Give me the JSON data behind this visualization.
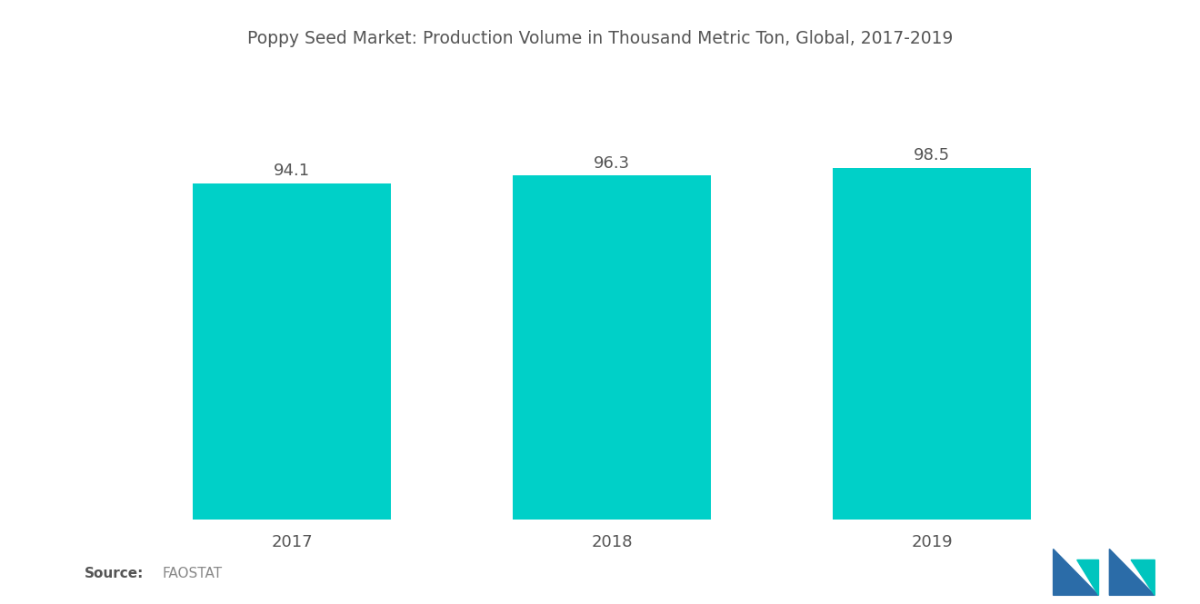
{
  "title": "Poppy Seed Market: Production Volume in Thousand Metric Ton, Global, 2017-2019",
  "categories": [
    "2017",
    "2018",
    "2019"
  ],
  "values": [
    94.1,
    96.3,
    98.5
  ],
  "bar_color": "#00D0C8",
  "value_labels": [
    "94.1",
    "96.3",
    "98.5"
  ],
  "source_label": "Source:",
  "source_value": "FAOSTAT",
  "title_fontsize": 13.5,
  "label_fontsize": 13,
  "tick_fontsize": 13,
  "source_fontsize": 11,
  "background_color": "#FFFFFF",
  "ylim": [
    0,
    115
  ],
  "bar_width": 0.62,
  "logo_blue": "#2B6CA8",
  "logo_teal": "#00C5BE"
}
